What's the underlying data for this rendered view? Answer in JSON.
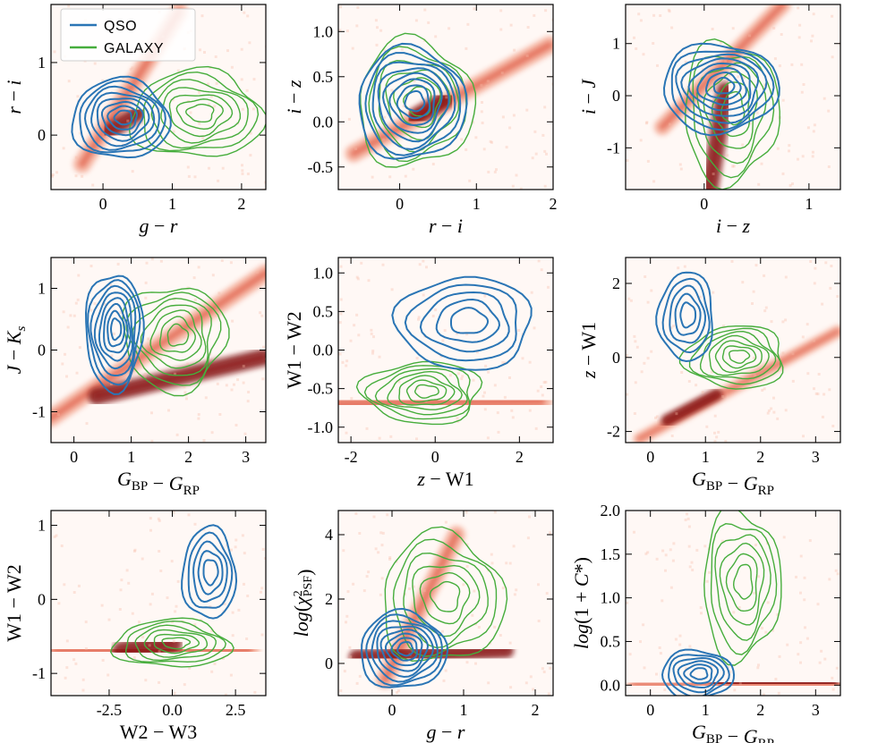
{
  "colors": {
    "qso": "#2a75b5",
    "galaxy": "#46ad3c",
    "density_light": "#fde1d6",
    "density_dark": "#7d0a0a"
  },
  "legend": {
    "entries": [
      {
        "name": "QSO",
        "color": "#2a75b5"
      },
      {
        "name": "GALAXY",
        "color": "#46ad3c"
      }
    ],
    "placement": "top-left of first panel"
  },
  "chart_data": [
    {
      "type": "contour",
      "xlabel": "g − r",
      "ylabel": "r − i",
      "xlim": [
        -0.75,
        2.35
      ],
      "ylim": [
        -0.75,
        1.8
      ],
      "xticks": [
        0,
        1,
        2
      ],
      "yticks": [
        0,
        1
      ],
      "density": [
        {
          "x0": -0.3,
          "y0": -0.4,
          "x1": 1.1,
          "y1": 1.7,
          "w": 0.09
        },
        {
          "x0": 0.1,
          "y0": 0.05,
          "x1": 0.5,
          "y1": 0.3,
          "w": 0.08
        }
      ],
      "qso": {
        "center": [
          0.25,
          0.22
        ],
        "radii": [
          0.7,
          0.55
        ],
        "levels": 8
      },
      "galaxy": {
        "center": [
          1.35,
          0.28
        ],
        "radii": [
          0.95,
          0.6
        ],
        "levels": 7
      }
    },
    {
      "type": "contour",
      "xlabel": "r − i",
      "ylabel": "i − z",
      "xlim": [
        -0.8,
        2.0
      ],
      "ylim": [
        -0.75,
        1.3
      ],
      "xticks": [
        0,
        1,
        2
      ],
      "yticks": [
        -0.5,
        0.0,
        0.5,
        1.0
      ],
      "density": [
        {
          "x0": -0.6,
          "y0": -0.35,
          "x1": 1.95,
          "y1": 0.85,
          "w": 0.07
        },
        {
          "x0": 0.2,
          "y0": 0.05,
          "x1": 0.6,
          "y1": 0.25,
          "w": 0.07
        }
      ],
      "qso": {
        "center": [
          0.15,
          0.2
        ],
        "radii": [
          0.7,
          0.62
        ],
        "levels": 8
      },
      "galaxy": {
        "center": [
          0.2,
          0.2
        ],
        "radii": [
          0.75,
          0.7
        ],
        "levels": 6
      }
    },
    {
      "type": "contour",
      "xlabel": "i − z",
      "ylabel": "i − J",
      "xlim": [
        -0.75,
        1.3
      ],
      "ylim": [
        -1.8,
        1.75
      ],
      "xticks": [
        0,
        1
      ],
      "yticks": [
        -1,
        0,
        1
      ],
      "density": [
        {
          "x0": -0.4,
          "y0": -0.6,
          "x1": 0.75,
          "y1": 1.75,
          "w": 0.11
        },
        {
          "x0": 0.05,
          "y0": -1.8,
          "x1": 0.2,
          "y1": 0.1,
          "w": 0.12
        }
      ],
      "qso": {
        "center": [
          0.15,
          0.15
        ],
        "radii": [
          0.55,
          0.85
        ],
        "levels": 8
      },
      "galaxy": {
        "center": [
          0.25,
          -0.3
        ],
        "radii": [
          0.45,
          1.35
        ],
        "levels": 6
      }
    },
    {
      "type": "contour",
      "xlabel": "G_BP − G_RP",
      "ylabel": "J − K_s",
      "xlim": [
        -0.4,
        3.35
      ],
      "ylim": [
        -1.5,
        1.5
      ],
      "xticks": [
        0,
        1,
        2,
        3
      ],
      "yticks": [
        -1,
        0,
        1
      ],
      "density": [
        {
          "x0": -0.4,
          "y0": -1.1,
          "x1": 3.35,
          "y1": 1.25,
          "w": 0.1
        },
        {
          "x0": 0.4,
          "y0": -0.75,
          "x1": 3.3,
          "y1": -0.12,
          "w": 0.1
        }
      ],
      "qso": {
        "center": [
          0.7,
          0.3
        ],
        "radii": [
          0.5,
          0.95
        ],
        "levels": 8
      },
      "galaxy": {
        "center": [
          1.75,
          0.2
        ],
        "radii": [
          0.9,
          0.85
        ],
        "levels": 7
      }
    },
    {
      "type": "contour",
      "xlabel": "z − W1",
      "ylabel": "W1 − W2",
      "xlim": [
        -2.3,
        2.8
      ],
      "ylim": [
        -1.2,
        1.2
      ],
      "xticks": [
        -2,
        0,
        2
      ],
      "yticks": [
        -1.0,
        -0.5,
        0.0,
        0.5,
        1.0
      ],
      "density": [
        {
          "x0": -2.3,
          "y0": -0.7,
          "x1": 2.5,
          "y1": -0.66,
          "w": 0.12
        },
        {
          "x0": -2.0,
          "y0": -0.72,
          "x1": -0.8,
          "y1": -0.72,
          "w": 0.08
        }
      ],
      "qso": {
        "center": [
          0.7,
          0.35
        ],
        "radii": [
          1.6,
          0.6
        ],
        "levels": 5
      },
      "galaxy": {
        "center": [
          -0.3,
          -0.55
        ],
        "radii": [
          1.4,
          0.4
        ],
        "levels": 7
      }
    },
    {
      "type": "contour",
      "xlabel": "G_BP − G_RP",
      "ylabel": "z − W1",
      "xlim": [
        -0.45,
        3.45
      ],
      "ylim": [
        -2.3,
        2.7
      ],
      "xticks": [
        0,
        1,
        2,
        3
      ],
      "yticks": [
        -2,
        0,
        2
      ],
      "density": [
        {
          "x0": -0.2,
          "y0": -2.2,
          "x1": 3.4,
          "y1": 0.7,
          "w": 0.1
        },
        {
          "x0": 0.3,
          "y0": -1.7,
          "x1": 1.2,
          "y1": -1.0,
          "w": 0.09
        }
      ],
      "qso": {
        "center": [
          0.65,
          1.1
        ],
        "radii": [
          0.5,
          1.2
        ],
        "levels": 5
      },
      "galaxy": {
        "center": [
          1.55,
          0.0
        ],
        "radii": [
          0.9,
          0.85
        ],
        "levels": 7
      }
    },
    {
      "type": "contour",
      "xlabel": "W2 − W3",
      "ylabel": "W1 − W2",
      "xlim": [
        -4.8,
        3.7
      ],
      "ylim": [
        -1.3,
        1.2
      ],
      "xticks": [
        -2.5,
        0.0,
        2.5
      ],
      "yticks": [
        -1,
        0,
        1
      ],
      "density": [
        {
          "x0": -4.6,
          "y0": -0.7,
          "x1": 3.0,
          "y1": -0.68,
          "w": 0.12
        },
        {
          "x0": -2.0,
          "y0": -0.7,
          "x1": 0.0,
          "y1": -0.6,
          "w": 0.1
        }
      ],
      "qso": {
        "center": [
          1.45,
          0.35
        ],
        "radii": [
          1.05,
          0.62
        ],
        "levels": 5
      },
      "galaxy": {
        "center": [
          0.0,
          -0.6
        ],
        "radii": [
          2.3,
          0.32
        ],
        "levels": 6
      }
    },
    {
      "type": "contour",
      "xlabel": "g − r",
      "ylabel": "log(χ²_PSF)",
      "xlim": [
        -0.75,
        2.25
      ],
      "ylim": [
        -1.0,
        4.75
      ],
      "xticks": [
        0,
        1,
        2
      ],
      "yticks": [
        0,
        2,
        4
      ],
      "density": [
        {
          "x0": -0.1,
          "y0": -0.5,
          "x1": 0.9,
          "y1": 4.0,
          "w": 0.2
        },
        {
          "x0": -0.5,
          "y0": 0.2,
          "x1": 1.6,
          "y1": 0.4,
          "w": 0.15
        }
      ],
      "qso": {
        "center": [
          0.15,
          0.4
        ],
        "radii": [
          0.6,
          1.2
        ],
        "levels": 8
      },
      "galaxy": {
        "center": [
          0.7,
          2.0
        ],
        "radii": [
          0.85,
          2.0
        ],
        "levels": 6
      }
    },
    {
      "type": "contour",
      "xlabel": "G_BP − G_RP",
      "ylabel": "log(1 + C*)",
      "xlim": [
        -0.45,
        3.45
      ],
      "ylim": [
        -0.12,
        2.0
      ],
      "xticks": [
        0,
        1,
        2,
        3
      ],
      "yticks": [
        0.0,
        0.5,
        1.0,
        1.5,
        2.0
      ],
      "density": [
        {
          "x0": -0.3,
          "y0": 0.02,
          "x1": 3.4,
          "y1": 0.0,
          "w": 0.05
        },
        {
          "x0": 1.2,
          "y0": 0.03,
          "x1": 3.3,
          "y1": 0.02,
          "w": 0.04
        }
      ],
      "qso": {
        "center": [
          0.85,
          0.12
        ],
        "radii": [
          0.65,
          0.28
        ],
        "levels": 6
      },
      "galaxy": {
        "center": [
          1.65,
          1.15
        ],
        "radii": [
          0.7,
          0.85
        ],
        "levels": 6
      }
    }
  ]
}
